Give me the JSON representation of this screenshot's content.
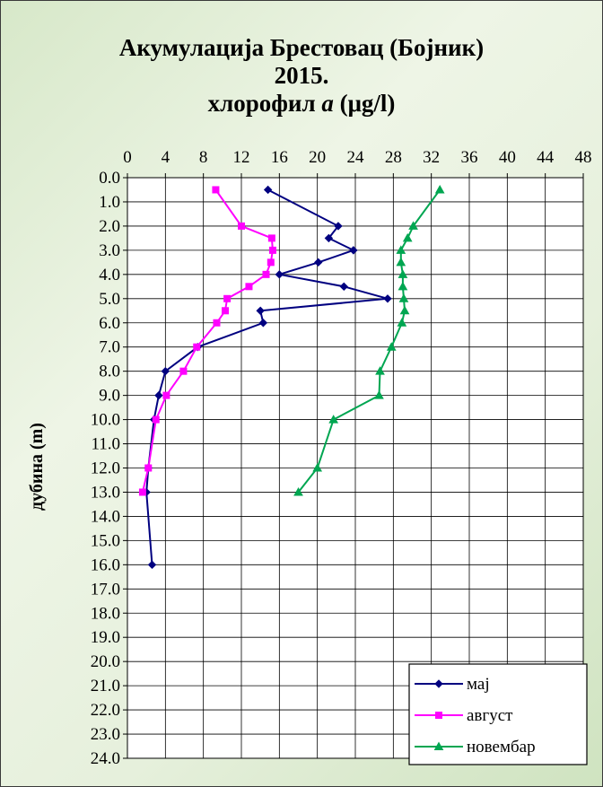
{
  "chart_data": {
    "type": "line",
    "title_line1": "Акумулација Брестовац (Бојник)",
    "title_line2": "2015.",
    "title_line3_prefix": "хлорофил ",
    "title_line3_italic": "a",
    "title_line3_suffix": " (μg/l)",
    "ylabel": "дубина (m)",
    "xlim": [
      0,
      48
    ],
    "xticks": [
      "0",
      "4",
      "8",
      "12",
      "16",
      "20",
      "24",
      "28",
      "32",
      "36",
      "40",
      "44",
      "48"
    ],
    "ylim": [
      0,
      24
    ],
    "yticks": [
      "0.0",
      "1.0",
      "2.0",
      "3.0",
      "4.0",
      "5.0",
      "6.0",
      "7.0",
      "8.0",
      "9.0",
      "10.0",
      "11.0",
      "12.0",
      "13.0",
      "14.0",
      "15.0",
      "16.0",
      "17.0",
      "18.0",
      "19.0",
      "20.0",
      "21.0",
      "22.0",
      "23.0",
      "24.0"
    ],
    "y_axis_inverted": true,
    "x_axis_position": "top",
    "grid": true,
    "legend_position": "bottom-right",
    "series": [
      {
        "name": "мај",
        "color": "#000080",
        "marker": "diamond",
        "points": [
          [
            14.8,
            0.5
          ],
          [
            22.2,
            2
          ],
          [
            21.2,
            2.5
          ],
          [
            23.8,
            3
          ],
          [
            20.1,
            3.5
          ],
          [
            16.0,
            4
          ],
          [
            22.8,
            4.5
          ],
          [
            27.4,
            5
          ],
          [
            14.0,
            5.5
          ],
          [
            14.3,
            6
          ],
          [
            7.4,
            7
          ],
          [
            4.0,
            8
          ],
          [
            3.3,
            9
          ],
          [
            2.8,
            10
          ],
          [
            2.2,
            12
          ],
          [
            2.0,
            13
          ],
          [
            2.6,
            16
          ]
        ]
      },
      {
        "name": "август",
        "color": "#FF00FF",
        "marker": "square",
        "points": [
          [
            9.3,
            0.5
          ],
          [
            12.0,
            2
          ],
          [
            15.2,
            2.5
          ],
          [
            15.3,
            3
          ],
          [
            15.1,
            3.5
          ],
          [
            14.6,
            4
          ],
          [
            12.8,
            4.5
          ],
          [
            10.5,
            5
          ],
          [
            10.3,
            5.5
          ],
          [
            9.4,
            6
          ],
          [
            7.3,
            7
          ],
          [
            5.9,
            8
          ],
          [
            4.1,
            9
          ],
          [
            3.0,
            10
          ],
          [
            2.2,
            12
          ],
          [
            1.6,
            13
          ]
        ]
      },
      {
        "name": "новембар",
        "color": "#00A651",
        "marker": "triangle",
        "points": [
          [
            32.9,
            0.5
          ],
          [
            30.1,
            2
          ],
          [
            29.5,
            2.5
          ],
          [
            28.8,
            3
          ],
          [
            28.8,
            3.5
          ],
          [
            29.0,
            4
          ],
          [
            29.0,
            4.5
          ],
          [
            29.1,
            5
          ],
          [
            29.2,
            5.5
          ],
          [
            28.9,
            6
          ],
          [
            27.8,
            7
          ],
          [
            26.6,
            8
          ],
          [
            26.5,
            9
          ],
          [
            21.7,
            10
          ],
          [
            20.0,
            12
          ],
          [
            18.0,
            13
          ]
        ]
      }
    ]
  }
}
